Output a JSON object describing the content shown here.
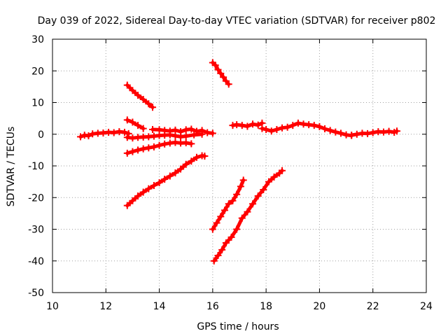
{
  "chart_data": {
    "type": "scatter",
    "title": "Day 039 of 2022, Sidereal Day-to-day VTEC variation (SDTVAR) for receiver p802",
    "xlabel": "GPS time / hours",
    "ylabel": "SDTVAR / TECUs",
    "xlim": [
      10,
      24
    ],
    "ylim": [
      -50,
      30
    ],
    "xticks": [
      10,
      12,
      14,
      16,
      18,
      20,
      22,
      24
    ],
    "yticks": [
      -50,
      -40,
      -30,
      -20,
      -10,
      0,
      10,
      20,
      30
    ],
    "xtick_labels": [
      "10",
      "12",
      "14",
      "16",
      "18",
      "20",
      "22",
      "24"
    ],
    "ytick_labels": [
      "-50",
      "-40",
      "-30",
      "-20",
      "-10",
      "0",
      "10",
      "20",
      "30"
    ],
    "grid": true,
    "marker_color": "#ff0000",
    "series": [
      {
        "x": [
          11.05,
          11.2,
          11.35,
          11.5,
          11.7,
          11.9,
          12.1,
          12.3,
          12.5,
          12.7,
          12.85
        ],
        "y": [
          -0.8,
          -0.3,
          -0.5,
          0.1,
          0.3,
          0.4,
          0.6,
          0.5,
          0.8,
          0.6,
          0.2
        ]
      },
      {
        "x": [
          12.8,
          13.0,
          13.2,
          13.4,
          13.6,
          13.8,
          14.0,
          14.2,
          14.4,
          14.6,
          14.8,
          15.0,
          15.3,
          15.6
        ],
        "y": [
          -1.0,
          -1.2,
          -1.0,
          -0.9,
          -0.8,
          -0.6,
          -0.4,
          -0.3,
          -0.2,
          -0.5,
          -0.8,
          -0.6,
          -0.2,
          0.0
        ]
      },
      {
        "x": [
          13.75,
          14.0,
          14.2,
          14.4,
          14.6,
          14.8,
          15.0,
          15.2,
          15.4,
          15.6,
          15.8,
          16.0
        ],
        "y": [
          1.5,
          1.4,
          1.2,
          1.0,
          1.3,
          0.8,
          1.4,
          1.6,
          0.9,
          1.2,
          0.5,
          0.3
        ]
      },
      {
        "x": [
          12.8,
          13.0,
          13.2,
          13.4,
          13.6,
          13.8,
          14.0,
          14.2,
          14.4,
          14.6,
          14.8,
          15.0,
          15.2
        ],
        "y": [
          -6.0,
          -5.5,
          -5.0,
          -4.6,
          -4.3,
          -4.0,
          -3.5,
          -3.1,
          -2.8,
          -2.6,
          -2.8,
          -2.7,
          -3.0
        ]
      },
      {
        "x": [
          12.8,
          13.0,
          13.2,
          13.4
        ],
        "y": [
          4.5,
          3.8,
          2.8,
          1.8
        ]
      },
      {
        "x": [
          12.8,
          13.0,
          13.2,
          13.4,
          13.6,
          13.75
        ],
        "y": [
          15.5,
          13.8,
          12.3,
          11.0,
          9.6,
          8.5
        ]
      },
      {
        "x": [
          12.8,
          13.0,
          13.2,
          13.4,
          13.6,
          13.8,
          14.0,
          14.2,
          14.4,
          14.6,
          14.8,
          15.0,
          15.2,
          15.4,
          15.6,
          15.7
        ],
        "y": [
          -22.5,
          -21.0,
          -19.5,
          -18.3,
          -17.2,
          -16.2,
          -15.3,
          -14.2,
          -13.2,
          -12.2,
          -11.0,
          -9.5,
          -8.5,
          -7.3,
          -6.8,
          -6.9
        ]
      },
      {
        "x": [
          16.0,
          16.1,
          16.2,
          16.3,
          16.4,
          16.5,
          16.6
        ],
        "y": [
          22.6,
          21.8,
          20.4,
          19.2,
          18.0,
          16.8,
          15.8
        ]
      },
      {
        "x": [
          16.75,
          16.9,
          17.1,
          17.3,
          17.5,
          17.7,
          17.85
        ],
        "y": [
          2.8,
          3.0,
          2.8,
          2.5,
          3.2,
          2.9,
          3.5
        ]
      },
      {
        "x": [
          17.85,
          18.0,
          18.2,
          18.4,
          18.6,
          18.8,
          19.0,
          19.2,
          19.4,
          19.6,
          19.8,
          20.0,
          20.2,
          20.4,
          20.6,
          20.8,
          21.0,
          21.2
        ],
        "y": [
          1.8,
          1.5,
          1.0,
          1.5,
          2.0,
          2.2,
          2.8,
          3.5,
          3.2,
          3.0,
          2.8,
          2.4,
          1.7,
          1.2,
          0.7,
          0.3,
          -0.2,
          -0.4
        ]
      },
      {
        "x": [
          21.2,
          21.4,
          21.6,
          21.8,
          22.0,
          22.2,
          22.4,
          22.6,
          22.8,
          22.9
        ],
        "y": [
          -0.3,
          0.0,
          0.3,
          0.2,
          0.5,
          0.8,
          0.7,
          0.9,
          0.6,
          1.0
        ]
      },
      {
        "x": [
          16.0,
          16.15,
          16.3,
          16.45,
          16.6,
          16.75,
          16.9,
          17.05,
          17.15
        ],
        "y": [
          -30.0,
          -28.0,
          -26.0,
          -24.0,
          -22.0,
          -21.0,
          -19.0,
          -16.5,
          -14.5
        ]
      },
      {
        "x": [
          16.05,
          16.2,
          16.35,
          16.5,
          16.7,
          16.9,
          17.1,
          17.3,
          17.5,
          17.7,
          17.9,
          18.1,
          18.3,
          18.5,
          18.6
        ],
        "y": [
          -40.0,
          -38.3,
          -36.5,
          -34.3,
          -32.5,
          -30.0,
          -26.5,
          -24.5,
          -22.0,
          -19.5,
          -17.5,
          -15.0,
          -13.5,
          -12.3,
          -11.5
        ]
      }
    ]
  }
}
